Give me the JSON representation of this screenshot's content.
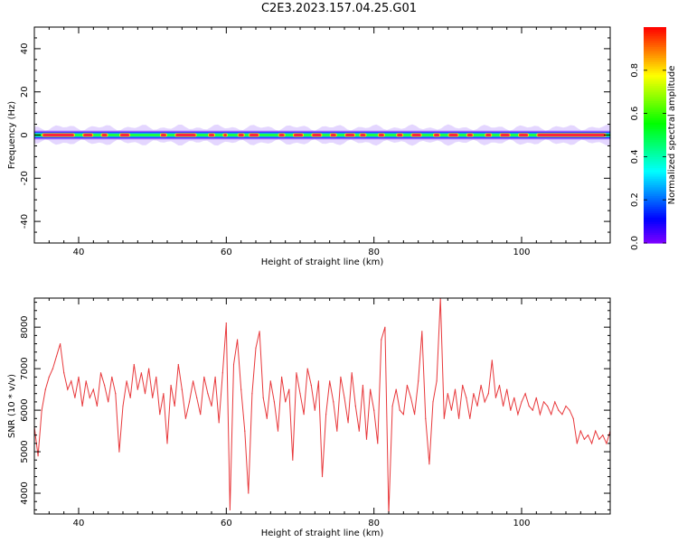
{
  "figure_title": "C2E3.2023.157.04.25.G01",
  "chart_data": [
    {
      "type": "heatmap",
      "xlabel": "Height of straight line (km)",
      "ylabel": "Frequency (Hz)",
      "xlim": [
        34,
        112
      ],
      "ylim": [
        -50,
        50
      ],
      "xticks": [
        40,
        60,
        80,
        100
      ],
      "yticks": [
        -40,
        -20,
        0,
        20,
        40
      ],
      "colorbar": {
        "label": "Normalized spectral amplitude",
        "range": [
          0,
          1
        ],
        "ticks": [
          "0.0",
          "0.2",
          "0.4",
          "0.6",
          "0.8"
        ],
        "tick_values": [
          0,
          0.2,
          0.4,
          0.6,
          0.8
        ],
        "colormap": "gist_rainbow reversed (violet low, red high)"
      },
      "band": {
        "center_hz": 0,
        "peak_halfwidth_hz": 0.6,
        "envelope_halfwidth_hz": [
          2,
          5
        ]
      },
      "peak_segments_km": [
        [
          35,
          39.5
        ],
        [
          40.5,
          42
        ],
        [
          43,
          44
        ],
        [
          45.5,
          47
        ],
        [
          51,
          52
        ],
        [
          53,
          56
        ],
        [
          57.5,
          58.5
        ],
        [
          59.5,
          60.2
        ],
        [
          61.5,
          62.5
        ],
        [
          63,
          64.5
        ],
        [
          67,
          68
        ],
        [
          69,
          70.5
        ],
        [
          71.5,
          73
        ],
        [
          74,
          75
        ],
        [
          76,
          77.5
        ],
        [
          78,
          79
        ],
        [
          80.5,
          81.5
        ],
        [
          83,
          84
        ],
        [
          85,
          86.5
        ],
        [
          88,
          89
        ],
        [
          90,
          91.5
        ],
        [
          92.5,
          93.5
        ],
        [
          95,
          96
        ],
        [
          97,
          98.5
        ],
        [
          99.5,
          101
        ],
        [
          102,
          111.5
        ]
      ]
    },
    {
      "type": "line",
      "xlabel": "Height of straight line (km)",
      "ylabel": "SNR (10 * v/v)",
      "xlim": [
        34,
        112
      ],
      "ylim": [
        3500,
        8700
      ],
      "xticks": [
        40,
        60,
        80,
        100
      ],
      "yticks": [
        4000,
        5000,
        6000,
        7000,
        8000
      ],
      "color": "#e8383b",
      "grid": false,
      "series": [
        {
          "x": [
            34,
            34.5,
            35,
            35.5,
            36,
            36.5,
            37,
            37.5,
            38,
            38.5,
            39,
            39.5,
            40,
            40.5,
            41,
            41.5,
            42,
            42.5,
            43,
            43.5,
            44,
            44.5,
            45,
            45.5,
            46,
            46.5,
            47,
            47.5,
            48,
            48.5,
            49,
            49.5,
            50,
            50.5,
            51,
            51.5,
            52,
            52.5,
            53,
            53.5,
            54,
            54.5,
            55,
            55.5,
            56,
            56.5,
            57,
            57.5,
            58,
            58.5,
            59,
            59.5,
            60,
            60.5,
            61,
            61.5,
            62,
            62.5,
            63,
            63.5,
            64,
            64.5,
            65,
            65.5,
            66,
            66.5,
            67,
            67.5,
            68,
            68.5,
            69,
            69.5,
            70,
            70.5,
            71,
            71.5,
            72,
            72.5,
            73,
            73.5,
            74,
            74.5,
            75,
            75.5,
            76,
            76.5,
            77,
            77.5,
            78,
            78.5,
            79,
            79.5,
            80,
            80.5,
            81,
            81.5,
            82,
            82.5,
            83,
            83.5,
            84,
            84.5,
            85,
            85.5,
            86,
            86.5,
            87,
            87.5,
            88,
            88.5,
            89,
            89.5,
            90,
            90.5,
            91,
            91.5,
            92,
            92.5,
            93,
            93.5,
            94,
            94.5,
            95,
            95.5,
            96,
            96.5,
            97,
            97.5,
            98,
            98.5,
            99,
            99.5,
            100,
            100.5,
            101,
            101.5,
            102,
            102.5,
            103,
            103.5,
            104,
            104.5,
            105,
            105.5,
            106,
            106.5,
            107,
            107.5,
            108,
            108.5,
            109,
            109.5,
            110,
            110.5,
            111,
            111.5,
            112
          ],
          "y": [
            5600,
            4900,
            6000,
            6500,
            6800,
            7000,
            7300,
            7600,
            6900,
            6500,
            6700,
            6300,
            6800,
            6100,
            6700,
            6300,
            6500,
            6100,
            6900,
            6600,
            6200,
            6800,
            6400,
            5000,
            6100,
            6700,
            6300,
            7100,
            6500,
            6900,
            6400,
            7000,
            6300,
            6800,
            5900,
            6400,
            5200,
            6600,
            6100,
            7100,
            6500,
            5800,
            6200,
            6700,
            6300,
            5900,
            6800,
            6400,
            6100,
            6800,
            5700,
            6900,
            8100,
            3600,
            7100,
            7700,
            6500,
            5500,
            4000,
            6400,
            7500,
            7900,
            6300,
            5800,
            6700,
            6200,
            5500,
            6800,
            6200,
            6500,
            4800,
            6900,
            6400,
            5900,
            7000,
            6600,
            6000,
            6700,
            4400,
            5900,
            6700,
            6200,
            5500,
            6800,
            6300,
            5700,
            6900,
            6100,
            5500,
            6600,
            5300,
            6500,
            6000,
            5200,
            7700,
            8000,
            3500,
            6100,
            6500,
            6000,
            5900,
            6600,
            6300,
            5900,
            6700,
            7900,
            5800,
            4700,
            6200,
            6700,
            8700,
            5800,
            6400,
            6000,
            6500,
            5800,
            6600,
            6300,
            5800,
            6400,
            6100,
            6600,
            6200,
            6400,
            7200,
            6300,
            6600,
            6100,
            6500,
            6000,
            6300,
            5900,
            6200,
            6400,
            6100,
            6000,
            6300,
            5900,
            6200,
            6100,
            5900,
            6200,
            6000,
            5900,
            6100,
            6000,
            5800,
            5200,
            5500,
            5300,
            5400,
            5200,
            5500,
            5300,
            5400,
            5200,
            5500
          ]
        }
      ]
    }
  ]
}
